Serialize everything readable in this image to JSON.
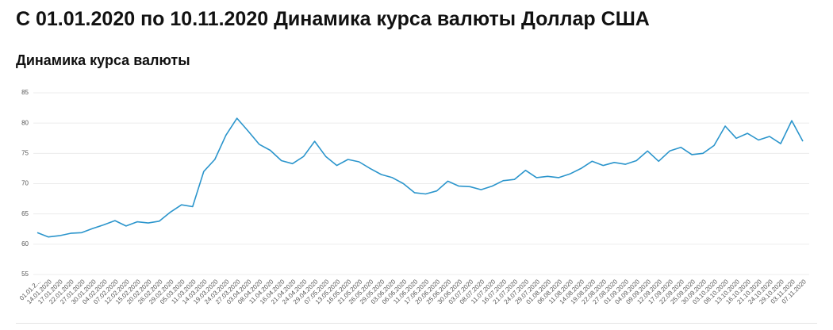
{
  "header": {
    "title": "С 01.01.2020 по 10.11.2020 Динамика курса валюты Доллар США"
  },
  "chart_data": {
    "type": "line",
    "title": "Динамика курса валюты",
    "categories": [
      "01.01.2...",
      "14.01.2020",
      "17.01.2020",
      "22.01.2020",
      "27.01.2020",
      "30.01.2020",
      "04.02.2020",
      "07.02.2020",
      "12.02.2020",
      "15.02.2020",
      "20.02.2020",
      "26.02.2020",
      "29.02.2020",
      "05.03.2020",
      "11.03.2020",
      "14.03.2020",
      "19.03.2020",
      "24.03.2020",
      "27.03.2020",
      "03.04.2020",
      "08.04.2020",
      "11.04.2020",
      "16.04.2020",
      "21.04.2020",
      "24.04.2020",
      "29.04.2020",
      "07.05.2020",
      "13.05.2020",
      "16.05.2020",
      "21.05.2020",
      "26.05.2020",
      "29.05.2020",
      "03.06.2020",
      "06.06.2020",
      "11.06.2020",
      "17.06.2020",
      "20.06.2020",
      "25.06.2020",
      "30.06.2020",
      "03.07.2020",
      "08.07.2020",
      "11.07.2020",
      "16.07.2020",
      "21.07.2020",
      "24.07.2020",
      "29.07.2020",
      "01.08.2020",
      "06.08.2020",
      "11.08.2020",
      "14.08.2020",
      "19.08.2020",
      "22.08.2020",
      "27.08.2020",
      "01.09.2020",
      "04.09.2020",
      "09.09.2020",
      "12.09.2020",
      "17.09.2020",
      "22.09.2020",
      "25.09.2020",
      "30.09.2020",
      "03.10.2020",
      "08.10.2020",
      "13.10.2020",
      "16.10.2020",
      "21.10.2020",
      "24.10.2020",
      "29.10.2020",
      "03.11.2020",
      "07.11.2020"
    ],
    "series": [
      {
        "color": "#2b95cc",
        "values": [
          61.9,
          61.2,
          61.4,
          61.8,
          61.9,
          62.6,
          63.2,
          63.9,
          63.0,
          63.7,
          63.5,
          63.8,
          65.3,
          66.5,
          66.2,
          72.0,
          74.0,
          78.0,
          80.8,
          78.7,
          76.5,
          75.5,
          73.8,
          73.3,
          74.5,
          77.0,
          74.5,
          73.0,
          74.0,
          73.6,
          72.5,
          71.5,
          71.0,
          70.0,
          68.5,
          68.3,
          68.8,
          70.4,
          69.6,
          69.5,
          69.0,
          69.6,
          70.5,
          70.7,
          72.2,
          71.0,
          71.2,
          71.0,
          71.6,
          72.5,
          73.7,
          73.0,
          73.5,
          73.2,
          73.8,
          75.4,
          73.7,
          75.4,
          76.0,
          74.8,
          75.0,
          76.3,
          79.5,
          77.5,
          78.3,
          77.2,
          77.8,
          76.6,
          80.4,
          77.0
        ]
      }
    ],
    "ylim": [
      55,
      85
    ],
    "yticks": [
      55,
      60,
      65,
      70,
      75,
      80,
      85
    ],
    "grid": true
  }
}
